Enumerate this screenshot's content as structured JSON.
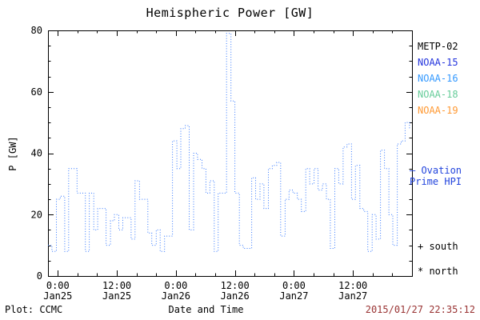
{
  "chart_data": {
    "type": "line",
    "style": "dotted-steps",
    "title": "Hemispheric Power [GW]",
    "xlabel": "Date and Time",
    "ylabel": "P [GW]",
    "xlim": [
      -2,
      72
    ],
    "ylim": [
      0,
      80
    ],
    "x_unit": "hours from Jan25 0:00",
    "grid": false,
    "legend_position": "right-outside",
    "y_ticks": [
      {
        "v": 0,
        "label": "0"
      },
      {
        "v": 20,
        "label": "20"
      },
      {
        "v": 40,
        "label": "40"
      },
      {
        "v": 60,
        "label": "60"
      },
      {
        "v": 80,
        "label": "80"
      }
    ],
    "x_ticks": [
      {
        "t": 0,
        "time": "0:00",
        "date": "Jan25"
      },
      {
        "t": 12,
        "time": "12:00",
        "date": "Jan25"
      },
      {
        "t": 24,
        "time": "0:00",
        "date": "Jan26"
      },
      {
        "t": 36,
        "time": "12:00",
        "date": "Jan26"
      },
      {
        "t": 48,
        "time": "0:00",
        "date": "Jan27"
      },
      {
        "t": 60,
        "time": "12:00",
        "date": "Jan27"
      }
    ],
    "series": [
      {
        "name": "Ovation Prime HPI",
        "color": "#3377ff",
        "x": [
          -2.0,
          -1.2,
          -0.3,
          0.5,
          1.4,
          2.2,
          3.1,
          3.9,
          4.8,
          5.6,
          6.4,
          7.3,
          8.1,
          9.0,
          9.8,
          10.7,
          11.5,
          12.4,
          13.2,
          14.1,
          14.9,
          15.7,
          16.6,
          17.4,
          18.3,
          19.1,
          20.0,
          20.8,
          21.7,
          22.5,
          23.3,
          24.2,
          25.0,
          25.9,
          26.7,
          27.6,
          28.4,
          29.3,
          30.1,
          30.9,
          31.8,
          32.6,
          33.5,
          34.3,
          35.2,
          36.0,
          36.9,
          37.7,
          38.6,
          39.4,
          40.2,
          41.1,
          41.9,
          42.8,
          43.6,
          44.5,
          45.3,
          46.2,
          47.0,
          47.8,
          48.7,
          49.5,
          50.4,
          51.2,
          52.1,
          52.9,
          53.8,
          54.6,
          55.4,
          56.3,
          57.1,
          58.0,
          58.8,
          59.7,
          60.5,
          61.4,
          62.2,
          63.0,
          63.9,
          64.7,
          65.6,
          66.4,
          67.3,
          68.1,
          69.0,
          69.8,
          70.6,
          71.5
        ],
        "y": [
          10,
          8,
          25,
          26,
          8,
          35,
          35,
          27,
          27,
          8,
          27,
          15,
          22,
          22,
          10,
          18,
          20,
          15,
          19,
          19,
          12,
          31,
          25,
          25,
          14,
          10,
          15,
          8,
          13,
          13,
          44,
          35,
          48,
          49,
          15,
          40,
          38,
          35,
          27,
          31,
          8,
          27,
          27,
          79,
          57,
          27,
          10,
          9,
          9,
          32,
          25,
          30,
          22,
          35,
          36,
          37,
          13,
          25,
          28,
          27,
          25,
          21,
          35,
          30,
          35,
          28,
          30,
          25,
          9,
          35,
          30,
          42,
          43,
          25,
          36,
          22,
          21,
          8,
          20,
          12,
          41,
          35,
          20,
          10,
          43,
          44,
          50,
          48
        ]
      }
    ],
    "legend": [
      {
        "label": "METP-02",
        "color": "#000000"
      },
      {
        "label": "NOAA-15",
        "color": "#2233dd"
      },
      {
        "label": "NOAA-16",
        "color": "#3399ff"
      },
      {
        "label": "NOAA-18",
        "color": "#66cc99"
      },
      {
        "label": "NOAA-19",
        "color": "#ff9933"
      }
    ],
    "annotations": {
      "ovation_line1": "– Ovation",
      "ovation_line2": "Prime HPI",
      "ovation_color": "#2244dd",
      "south": "+ south",
      "north": "* north"
    }
  },
  "footer": {
    "left": "Plot: CCMC",
    "right": "2015/01/27 22:35:12",
    "right_color": "#993333"
  }
}
